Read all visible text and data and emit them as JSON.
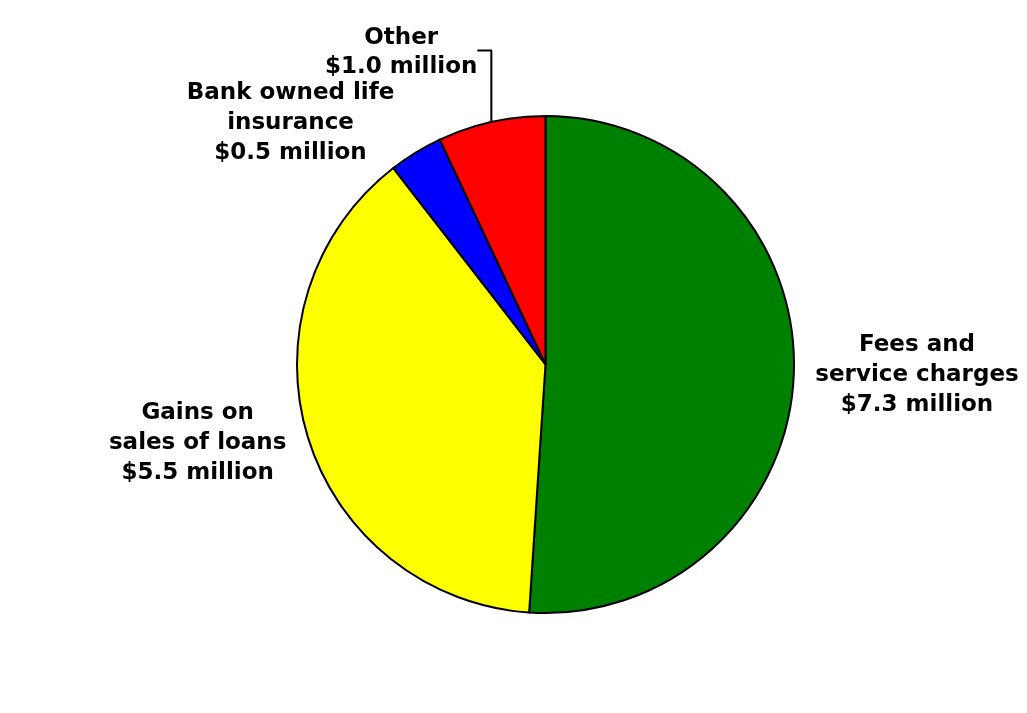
{
  "chart_data": {
    "type": "pie",
    "categories": [
      "Fees and\nservice charges",
      "Gains on\nsales of loans",
      "Bank owned life\ninsurance",
      "Other"
    ],
    "values": [
      7.3,
      5.5,
      0.5,
      1.0
    ],
    "value_labels": [
      "$7.3 million",
      "$5.5 million",
      "$0.5 million",
      "$1.0 million"
    ],
    "colors": [
      "#008000",
      "#ffff00",
      "#0000ff",
      "#ff0000"
    ],
    "legend": false
  }
}
